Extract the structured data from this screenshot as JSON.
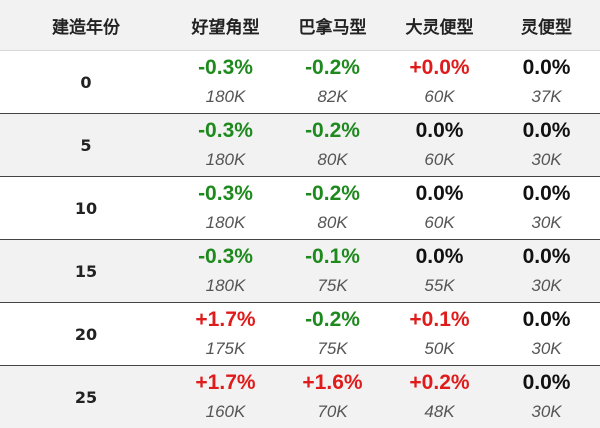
{
  "header": {
    "year": "建造年份",
    "cols": [
      "好望角型",
      "巴拿马型",
      "大灵便型",
      "灵便型"
    ]
  },
  "rows": [
    {
      "year": "0",
      "cells": [
        {
          "chg": "-0.3%",
          "vol": "180K",
          "tone": "neg"
        },
        {
          "chg": "-0.2%",
          "vol": "82K",
          "tone": "neg"
        },
        {
          "chg": "+0.0%",
          "vol": "60K",
          "tone": "pos"
        },
        {
          "chg": "0.0%",
          "vol": "37K",
          "tone": "zero"
        }
      ]
    },
    {
      "year": "5",
      "cells": [
        {
          "chg": "-0.3%",
          "vol": "180K",
          "tone": "neg"
        },
        {
          "chg": "-0.2%",
          "vol": "80K",
          "tone": "neg"
        },
        {
          "chg": "0.0%",
          "vol": "60K",
          "tone": "zero"
        },
        {
          "chg": "0.0%",
          "vol": "30K",
          "tone": "zero"
        }
      ]
    },
    {
      "year": "10",
      "cells": [
        {
          "chg": "-0.3%",
          "vol": "180K",
          "tone": "neg"
        },
        {
          "chg": "-0.2%",
          "vol": "80K",
          "tone": "neg"
        },
        {
          "chg": "0.0%",
          "vol": "60K",
          "tone": "zero"
        },
        {
          "chg": "0.0%",
          "vol": "30K",
          "tone": "zero"
        }
      ]
    },
    {
      "year": "15",
      "cells": [
        {
          "chg": "-0.3%",
          "vol": "180K",
          "tone": "neg"
        },
        {
          "chg": "-0.1%",
          "vol": "75K",
          "tone": "neg"
        },
        {
          "chg": "0.0%",
          "vol": "55K",
          "tone": "zero"
        },
        {
          "chg": "0.0%",
          "vol": "30K",
          "tone": "zero"
        }
      ]
    },
    {
      "year": "20",
      "cells": [
        {
          "chg": "+1.7%",
          "vol": "175K",
          "tone": "pos"
        },
        {
          "chg": "-0.2%",
          "vol": "75K",
          "tone": "neg"
        },
        {
          "chg": "+0.1%",
          "vol": "50K",
          "tone": "pos"
        },
        {
          "chg": "0.0%",
          "vol": "30K",
          "tone": "zero"
        }
      ]
    },
    {
      "year": "25",
      "cells": [
        {
          "chg": "+1.7%",
          "vol": "160K",
          "tone": "pos"
        },
        {
          "chg": "+1.6%",
          "vol": "70K",
          "tone": "pos"
        },
        {
          "chg": "+0.2%",
          "vol": "48K",
          "tone": "pos"
        },
        {
          "chg": "0.0%",
          "vol": "30K",
          "tone": "zero"
        }
      ]
    }
  ],
  "colors": {
    "negative": "#1e8a1e",
    "positive": "#e01b1b",
    "neutral": "#111111",
    "header_bg": "#f2f2f2"
  }
}
